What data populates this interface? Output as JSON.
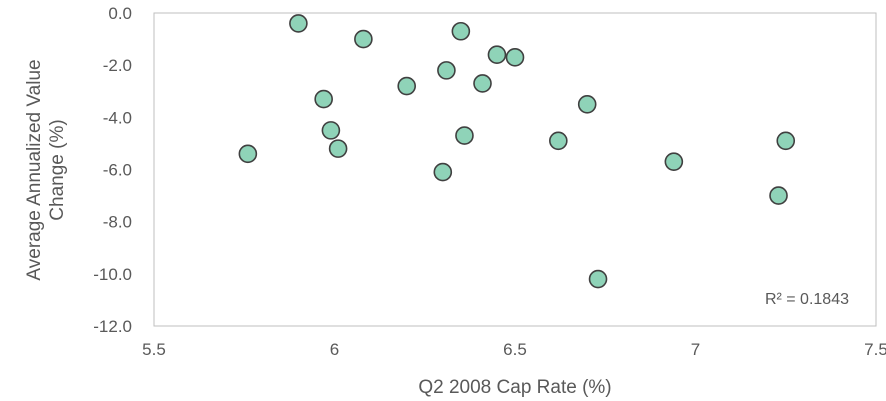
{
  "chart_data": {
    "type": "scatter",
    "xlabel": "Q2 2008 Cap Rate (%)",
    "ylabel_lines": [
      "Average Annualized Value",
      "Change (%)"
    ],
    "xlim": [
      5.5,
      7.5
    ],
    "ylim": [
      -12,
      0
    ],
    "x_ticks": [
      "5.5",
      "6",
      "6.5",
      "7",
      "7.5"
    ],
    "y_ticks": [
      "0.0",
      "-2.0",
      "-4.0",
      "-6.0",
      "-8.0",
      "-10.0",
      "-12.0"
    ],
    "grid": false,
    "annotation": "R² = 0.1843",
    "marker_color": "#8fd3b8",
    "marker_edge": "#404040",
    "points": [
      {
        "x": 5.76,
        "y": -5.4
      },
      {
        "x": 5.9,
        "y": -0.4
      },
      {
        "x": 5.97,
        "y": -3.3
      },
      {
        "x": 5.99,
        "y": -4.5
      },
      {
        "x": 6.01,
        "y": -5.2
      },
      {
        "x": 6.08,
        "y": -1.0
      },
      {
        "x": 6.2,
        "y": -2.8
      },
      {
        "x": 6.3,
        "y": -6.1
      },
      {
        "x": 6.31,
        "y": -2.2
      },
      {
        "x": 6.35,
        "y": -0.7
      },
      {
        "x": 6.36,
        "y": -4.7
      },
      {
        "x": 6.41,
        "y": -2.7
      },
      {
        "x": 6.45,
        "y": -1.6
      },
      {
        "x": 6.5,
        "y": -1.7
      },
      {
        "x": 6.62,
        "y": -4.9
      },
      {
        "x": 6.7,
        "y": -3.5
      },
      {
        "x": 6.73,
        "y": -10.2
      },
      {
        "x": 6.94,
        "y": -5.7
      },
      {
        "x": 7.23,
        "y": -7.0
      },
      {
        "x": 7.25,
        "y": -4.9
      }
    ]
  }
}
